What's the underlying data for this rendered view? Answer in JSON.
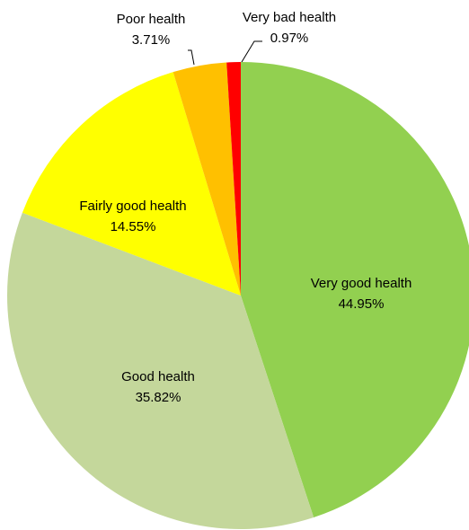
{
  "chart_data": {
    "type": "pie",
    "categories": [
      "Very good health",
      "Good health",
      "Fairly good health",
      "Poor health",
      "Very bad health"
    ],
    "values": [
      44.95,
      35.82,
      14.55,
      3.71,
      0.97
    ],
    "value_labels": [
      "44.95%",
      "35.82%",
      "14.55%",
      "3.71%",
      "0.97%"
    ],
    "colors": [
      "#92d050",
      "#c4d79b",
      "#ffff00",
      "#ffc000",
      "#ff0000"
    ]
  }
}
